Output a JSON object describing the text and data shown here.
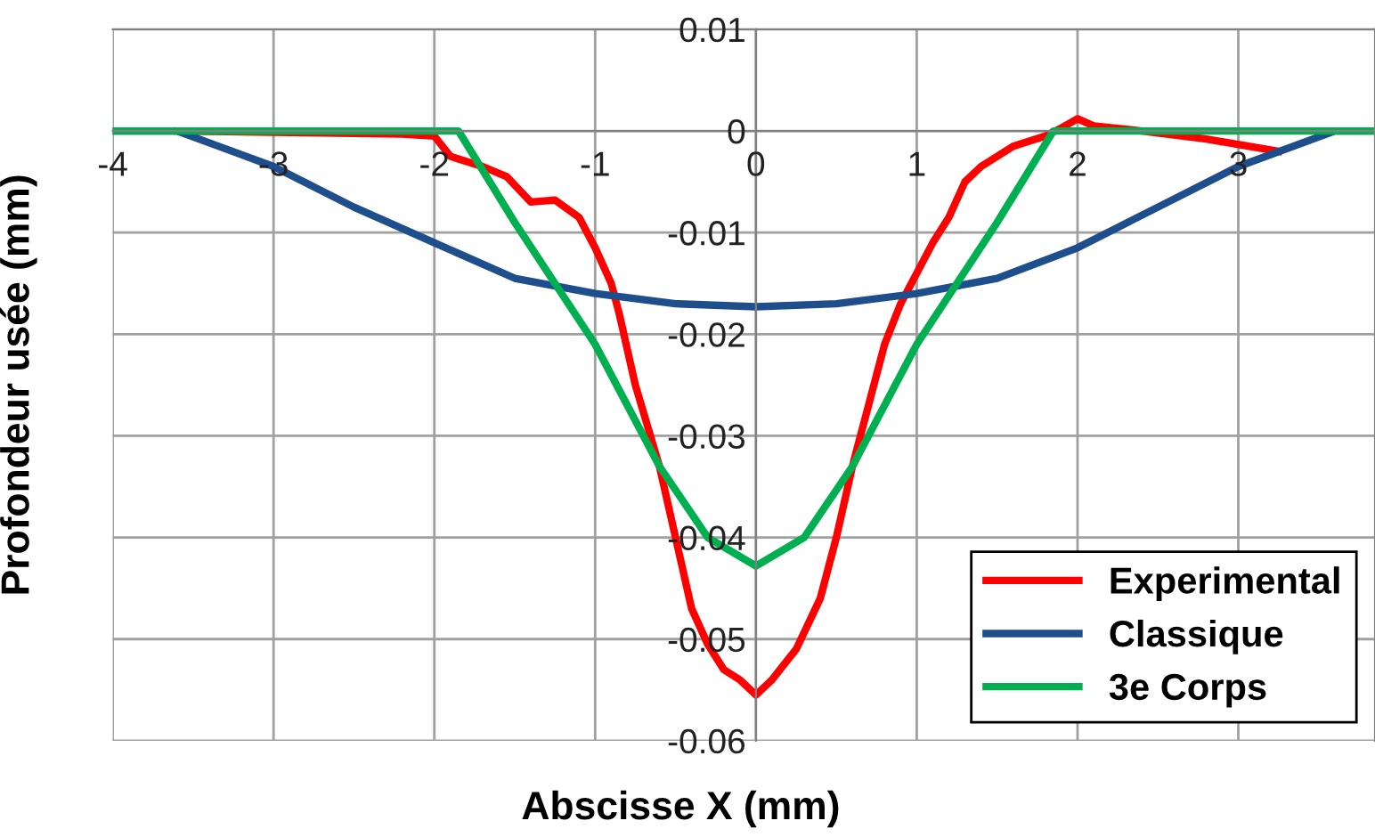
{
  "chart_data": {
    "type": "line",
    "xlabel": "Abscisse X (mm)",
    "ylabel": "Profondeur usée (mm)",
    "xlim": [
      -4,
      3.85
    ],
    "xticks": [
      -4,
      -3,
      -2,
      -1,
      0,
      1,
      2,
      3
    ],
    "ylim": [
      -0.06,
      0.01
    ],
    "yticks": [
      -0.06,
      -0.05,
      -0.04,
      -0.03,
      -0.02,
      -0.01,
      0,
      0.01
    ],
    "grid": true,
    "legend": "bottom right",
    "line_style": "solid",
    "marker": "none",
    "series": [
      {
        "name": "Experimental",
        "color": "#ff0000",
        "x": [
          -3.6,
          -2.2,
          -2.0,
          -1.9,
          -1.7,
          -1.55,
          -1.4,
          -1.25,
          -1.1,
          -1.0,
          -0.9,
          -0.85,
          -0.75,
          -0.6,
          -0.5,
          -0.4,
          -0.3,
          -0.2,
          -0.1,
          0,
          0.1,
          0.25,
          0.4,
          0.5,
          0.6,
          0.7,
          0.8,
          0.9,
          1.0,
          1.1,
          1.2,
          1.3,
          1.4,
          1.6,
          1.8,
          1.9,
          2.0,
          2.1,
          2.4,
          2.8,
          3.25
        ],
        "values": [
          0,
          -0.0003,
          -0.0005,
          -0.0025,
          -0.0035,
          -0.0045,
          -0.007,
          -0.0068,
          -0.0085,
          -0.0115,
          -0.015,
          -0.018,
          -0.025,
          -0.033,
          -0.04,
          -0.047,
          -0.0505,
          -0.053,
          -0.054,
          -0.0555,
          -0.054,
          -0.051,
          -0.046,
          -0.04,
          -0.033,
          -0.027,
          -0.021,
          -0.017,
          -0.014,
          -0.011,
          -0.0085,
          -0.005,
          -0.0035,
          -0.0015,
          -0.0005,
          0.0003,
          0.0012,
          0.0005,
          0,
          -0.0008,
          -0.002
        ]
      },
      {
        "name": "Classique",
        "color": "#1f4e8c",
        "x": [
          -4,
          -3.6,
          -3,
          -2.5,
          -2,
          -1.5,
          -1,
          -0.5,
          0,
          0.5,
          1,
          1.5,
          2,
          2.5,
          3,
          3.6,
          3.85
        ],
        "values": [
          0,
          0,
          -0.0035,
          -0.0075,
          -0.011,
          -0.0145,
          -0.016,
          -0.017,
          -0.0173,
          -0.017,
          -0.016,
          -0.0145,
          -0.0115,
          -0.0075,
          -0.0035,
          0,
          0
        ]
      },
      {
        "name": "3e Corps",
        "color": "#00b050",
        "x": [
          -4,
          -1.85,
          -1.5,
          -1.0,
          -0.6,
          -0.3,
          0,
          0.3,
          0.6,
          1.0,
          1.5,
          1.85,
          3.85
        ],
        "values": [
          0,
          0,
          -0.009,
          -0.021,
          -0.033,
          -0.04,
          -0.0428,
          -0.04,
          -0.033,
          -0.021,
          -0.009,
          0,
          0
        ]
      }
    ]
  }
}
